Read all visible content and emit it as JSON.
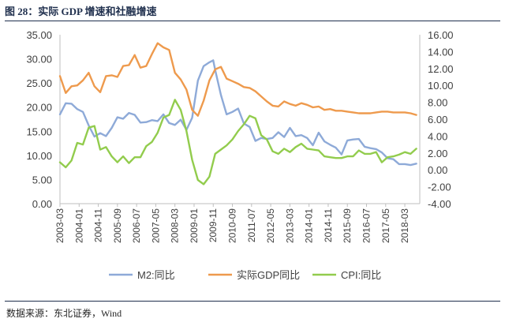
{
  "figure": {
    "title": "图 28：实际 GDP 增速和社融增速",
    "source": "数据来源：东北证券，Wind"
  },
  "chart_data": {
    "type": "line",
    "x_ticks": [
      "2003-03",
      "2004-01",
      "2004-11",
      "2005-09",
      "2006-07",
      "2007-05",
      "2008-03",
      "2009-01",
      "2009-11",
      "2010-09",
      "2011-07",
      "2012-05",
      "2013-03",
      "2014-01",
      "2014-11",
      "2015-09",
      "2016-07",
      "2017-05",
      "2018-03"
    ],
    "y_left": {
      "ticks": [
        "0.00",
        "5.00",
        "10.00",
        "15.00",
        "20.00",
        "25.00",
        "30.00",
        "35.00"
      ],
      "range": [
        0,
        35
      ]
    },
    "y_right": {
      "ticks": [
        "-4.00",
        "-2.00",
        "0.00",
        "2.00",
        "4.00",
        "6.00",
        "8.00",
        "10.00",
        "12.00",
        "14.00",
        "16.00"
      ],
      "range": [
        -4,
        16
      ]
    },
    "legend_position": "bottom",
    "grid": false,
    "series": [
      {
        "name": "M2:同比",
        "axis": "left",
        "color": "#8eaad8",
        "points": [
          [
            "2003-03",
            18.5
          ],
          [
            "2003-06",
            20.8
          ],
          [
            "2003-09",
            20.7
          ],
          [
            "2003-12",
            19.6
          ],
          [
            "2004-03",
            19.0
          ],
          [
            "2004-06",
            16.2
          ],
          [
            "2004-09",
            13.9
          ],
          [
            "2004-12",
            14.6
          ],
          [
            "2005-03",
            14.0
          ],
          [
            "2005-06",
            15.7
          ],
          [
            "2005-09",
            17.9
          ],
          [
            "2005-12",
            17.6
          ],
          [
            "2006-03",
            18.8
          ],
          [
            "2006-06",
            18.4
          ],
          [
            "2006-09",
            16.8
          ],
          [
            "2006-12",
            16.9
          ],
          [
            "2007-03",
            17.3
          ],
          [
            "2007-06",
            17.1
          ],
          [
            "2007-09",
            18.5
          ],
          [
            "2007-12",
            16.7
          ],
          [
            "2008-03",
            16.3
          ],
          [
            "2008-06",
            17.4
          ],
          [
            "2008-09",
            15.3
          ],
          [
            "2008-12",
            17.8
          ],
          [
            "2009-03",
            25.5
          ],
          [
            "2009-06",
            28.5
          ],
          [
            "2009-09",
            29.3
          ],
          [
            "2009-11",
            29.7
          ],
          [
            "2009-12",
            27.7
          ],
          [
            "2010-03",
            22.5
          ],
          [
            "2010-06",
            18.5
          ],
          [
            "2010-09",
            19.0
          ],
          [
            "2010-12",
            19.7
          ],
          [
            "2011-03",
            16.6
          ],
          [
            "2011-06",
            15.9
          ],
          [
            "2011-09",
            13.0
          ],
          [
            "2011-12",
            13.6
          ],
          [
            "2012-03",
            13.4
          ],
          [
            "2012-06",
            13.6
          ],
          [
            "2012-09",
            14.8
          ],
          [
            "2012-12",
            13.8
          ],
          [
            "2013-03",
            15.7
          ],
          [
            "2013-06",
            14.0
          ],
          [
            "2013-09",
            14.2
          ],
          [
            "2013-12",
            13.6
          ],
          [
            "2014-03",
            12.1
          ],
          [
            "2014-06",
            14.7
          ],
          [
            "2014-09",
            12.9
          ],
          [
            "2014-12",
            12.2
          ],
          [
            "2015-03",
            11.6
          ],
          [
            "2015-06",
            10.2
          ],
          [
            "2015-09",
            13.1
          ],
          [
            "2015-12",
            13.3
          ],
          [
            "2016-03",
            13.4
          ],
          [
            "2016-06",
            11.8
          ],
          [
            "2016-09",
            11.5
          ],
          [
            "2016-12",
            11.3
          ],
          [
            "2017-03",
            10.6
          ],
          [
            "2017-06",
            9.4
          ],
          [
            "2017-09",
            9.2
          ],
          [
            "2017-12",
            8.2
          ],
          [
            "2018-03",
            8.2
          ],
          [
            "2018-06",
            8.0
          ],
          [
            "2018-09",
            8.3
          ]
        ]
      },
      {
        "name": "实际GDP同比",
        "axis": "right",
        "color": "#ee9a4d",
        "points": [
          [
            "2003-03",
            11.1
          ],
          [
            "2003-06",
            9.1
          ],
          [
            "2003-09",
            9.9
          ],
          [
            "2003-12",
            10.0
          ],
          [
            "2004-03",
            10.6
          ],
          [
            "2004-06",
            11.5
          ],
          [
            "2004-09",
            9.9
          ],
          [
            "2004-12",
            9.2
          ],
          [
            "2005-03",
            11.1
          ],
          [
            "2005-06",
            11.2
          ],
          [
            "2005-09",
            11.0
          ],
          [
            "2005-12",
            12.3
          ],
          [
            "2006-03",
            12.4
          ],
          [
            "2006-06",
            13.6
          ],
          [
            "2006-09",
            12.1
          ],
          [
            "2006-12",
            12.3
          ],
          [
            "2007-03",
            13.7
          ],
          [
            "2007-06",
            15.0
          ],
          [
            "2007-09",
            14.5
          ],
          [
            "2007-12",
            14.2
          ],
          [
            "2008-03",
            11.5
          ],
          [
            "2008-06",
            10.7
          ],
          [
            "2008-09",
            9.5
          ],
          [
            "2008-12",
            7.1
          ],
          [
            "2009-03",
            6.4
          ],
          [
            "2009-06",
            8.2
          ],
          [
            "2009-09",
            10.6
          ],
          [
            "2009-12",
            11.9
          ],
          [
            "2010-03",
            12.2
          ],
          [
            "2010-06",
            10.8
          ],
          [
            "2010-09",
            10.5
          ],
          [
            "2010-12",
            10.2
          ],
          [
            "2011-03",
            9.8
          ],
          [
            "2011-06",
            9.7
          ],
          [
            "2011-09",
            9.3
          ],
          [
            "2011-12",
            8.7
          ],
          [
            "2012-03",
            8.1
          ],
          [
            "2012-06",
            7.6
          ],
          [
            "2012-09",
            7.5
          ],
          [
            "2012-12",
            8.1
          ],
          [
            "2013-03",
            7.8
          ],
          [
            "2013-06",
            7.6
          ],
          [
            "2013-09",
            7.9
          ],
          [
            "2013-12",
            7.7
          ],
          [
            "2014-03",
            7.4
          ],
          [
            "2014-06",
            7.5
          ],
          [
            "2014-09",
            7.1
          ],
          [
            "2014-12",
            7.2
          ],
          [
            "2015-03",
            7.0
          ],
          [
            "2015-06",
            7.0
          ],
          [
            "2015-09",
            6.9
          ],
          [
            "2015-12",
            6.8
          ],
          [
            "2016-03",
            6.7
          ],
          [
            "2016-06",
            6.7
          ],
          [
            "2016-09",
            6.7
          ],
          [
            "2016-12",
            6.8
          ],
          [
            "2017-03",
            6.9
          ],
          [
            "2017-06",
            6.9
          ],
          [
            "2017-09",
            6.8
          ],
          [
            "2017-12",
            6.8
          ],
          [
            "2018-03",
            6.8
          ],
          [
            "2018-06",
            6.7
          ],
          [
            "2018-09",
            6.5
          ]
        ]
      },
      {
        "name": "CPI:同比",
        "axis": "right",
        "color": "#92cc4d",
        "points": [
          [
            "2003-03",
            0.9
          ],
          [
            "2003-06",
            0.3
          ],
          [
            "2003-09",
            1.1
          ],
          [
            "2003-12",
            3.2
          ],
          [
            "2004-03",
            3.0
          ],
          [
            "2004-06",
            5.0
          ],
          [
            "2004-09",
            5.2
          ],
          [
            "2004-12",
            2.4
          ],
          [
            "2005-03",
            2.7
          ],
          [
            "2005-06",
            1.6
          ],
          [
            "2005-09",
            0.9
          ],
          [
            "2005-12",
            1.6
          ],
          [
            "2006-03",
            0.8
          ],
          [
            "2006-06",
            1.5
          ],
          [
            "2006-09",
            1.5
          ],
          [
            "2006-12",
            2.8
          ],
          [
            "2007-03",
            3.3
          ],
          [
            "2007-06",
            4.4
          ],
          [
            "2007-09",
            6.2
          ],
          [
            "2007-12",
            6.5
          ],
          [
            "2008-03",
            8.3
          ],
          [
            "2008-06",
            7.1
          ],
          [
            "2008-09",
            4.6
          ],
          [
            "2008-12",
            1.2
          ],
          [
            "2009-03",
            -1.2
          ],
          [
            "2009-06",
            -1.7
          ],
          [
            "2009-09",
            -0.8
          ],
          [
            "2009-12",
            1.9
          ],
          [
            "2010-03",
            2.4
          ],
          [
            "2010-06",
            2.9
          ],
          [
            "2010-09",
            3.6
          ],
          [
            "2010-12",
            4.6
          ],
          [
            "2011-03",
            5.4
          ],
          [
            "2011-06",
            6.4
          ],
          [
            "2011-09",
            6.1
          ],
          [
            "2011-12",
            4.1
          ],
          [
            "2012-03",
            3.6
          ],
          [
            "2012-06",
            2.2
          ],
          [
            "2012-09",
            1.9
          ],
          [
            "2012-12",
            2.5
          ],
          [
            "2013-03",
            2.1
          ],
          [
            "2013-06",
            2.7
          ],
          [
            "2013-09",
            3.1
          ],
          [
            "2013-12",
            2.5
          ],
          [
            "2014-03",
            2.4
          ],
          [
            "2014-06",
            2.3
          ],
          [
            "2014-09",
            1.6
          ],
          [
            "2014-12",
            1.5
          ],
          [
            "2015-03",
            1.4
          ],
          [
            "2015-06",
            1.4
          ],
          [
            "2015-09",
            1.6
          ],
          [
            "2015-12",
            1.6
          ],
          [
            "2016-03",
            2.3
          ],
          [
            "2016-06",
            1.9
          ],
          [
            "2016-09",
            1.9
          ],
          [
            "2016-12",
            2.1
          ],
          [
            "2017-03",
            0.9
          ],
          [
            "2017-06",
            1.5
          ],
          [
            "2017-09",
            1.6
          ],
          [
            "2017-12",
            1.8
          ],
          [
            "2018-03",
            2.1
          ],
          [
            "2018-06",
            1.9
          ],
          [
            "2018-09",
            2.5
          ]
        ]
      }
    ]
  }
}
